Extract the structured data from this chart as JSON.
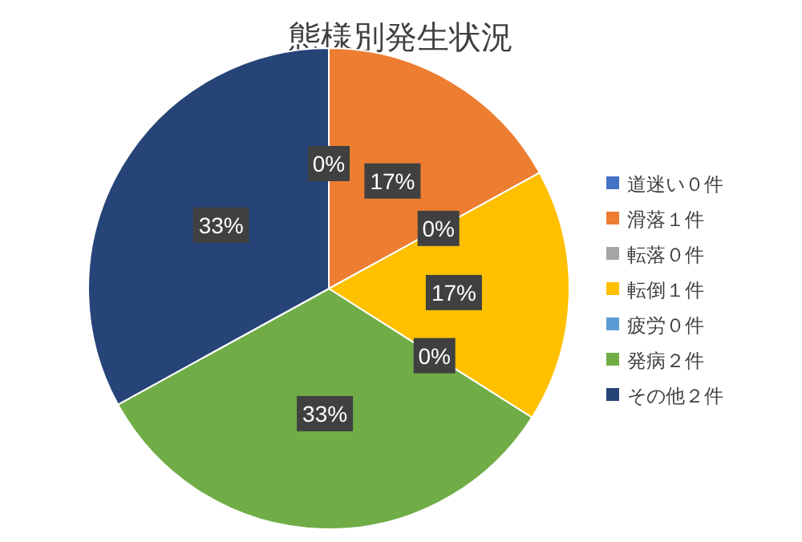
{
  "chart_data": {
    "type": "pie",
    "title": "態様別発生状況",
    "categories": [
      "道迷い０件",
      "滑落１件",
      "転落０件",
      "転倒１件",
      "疲労０件",
      "発病２件",
      "その他２件"
    ],
    "values": [
      0,
      17,
      0,
      17,
      0,
      33,
      33
    ],
    "colors": [
      "#4472c4",
      "#ed7d31",
      "#a5a5a5",
      "#ffc000",
      "#5b9bd5",
      "#70ad47",
      "#264478"
    ],
    "value_labels": [
      "0%",
      "17%",
      "0%",
      "17%",
      "0%",
      "33%",
      "33%"
    ],
    "legend": "right"
  }
}
